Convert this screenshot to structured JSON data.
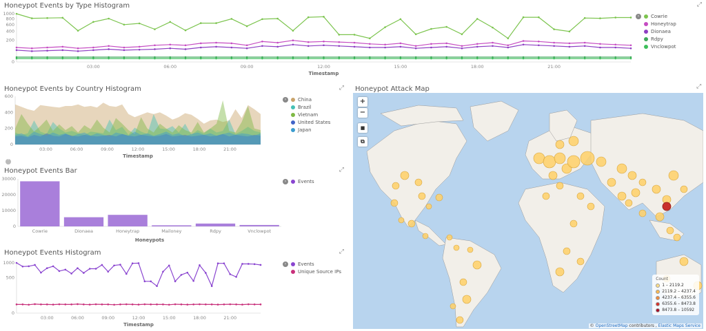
{
  "panels": {
    "type_hist": {
      "title": "Honeypot Events by Type Histogram"
    },
    "country_hist": {
      "title": "Honeypot Events by Country Histogram"
    },
    "bar": {
      "title": "Honeypot Events Bar"
    },
    "events_hist": {
      "title": "Honeypot Events Histogram"
    },
    "map": {
      "title": "Honeypot Attack Map"
    }
  },
  "map": {
    "zoom_in": "+",
    "zoom_out": "−",
    "legend_title": "Count",
    "legend": [
      {
        "label": "1 – 2119.2",
        "color": "#ffe08a"
      },
      {
        "label": "2119.2 – 4237.4",
        "color": "#fcb94f"
      },
      {
        "label": "4237.4 – 6355.6",
        "color": "#f08a3c"
      },
      {
        "label": "6355.6 – 8473.8",
        "color": "#d7302a"
      },
      {
        "label": "8473.8 – 10592",
        "color": "#a50d26"
      }
    ],
    "attribution_prefix": "© ",
    "attribution_osm": "OpenStreetMap",
    "attribution_mid": " contributors , ",
    "attribution_ems": "Elastic Maps Service"
  },
  "colors": {
    "Cowrie": "#7cc44e",
    "Honeytrap": "#c54bc2",
    "Dionaea": "#8e3ec3",
    "Rdpy": "#3fa85a",
    "Vnclowpot": "#3dbf5b",
    "China": "#c9a36b",
    "Brazil": "#45c0b5",
    "Vietnam": "#7fb944",
    "United States": "#4164c8",
    "Japan": "#3a9ccf",
    "Events": "#8a45d0",
    "Unique Source IPs": "#c8307b",
    "bar": "#a97fdb"
  },
  "chart_data": [
    {
      "type": "line",
      "title": "Honeypot Events by Type Histogram",
      "xlabel": "Timestamp",
      "x_ticks": [
        "03:00",
        "06:00",
        "09:00",
        "12:00",
        "15:00",
        "18:00",
        "21:00"
      ],
      "y_ticks": [
        "0",
        "200",
        "400",
        "600",
        "800",
        "1000"
      ],
      "series": [
        {
          "name": "Cowrie",
          "values": [
            1000,
            820,
            830,
            840,
            420,
            690,
            810,
            600,
            640,
            460,
            690,
            430,
            650,
            650,
            800,
            550,
            790,
            810,
            420,
            860,
            880,
            320,
            320,
            240,
            520,
            790,
            330,
            470,
            530,
            330,
            800,
            510,
            240,
            860,
            860,
            460,
            400,
            830,
            820,
            850,
            850
          ]
        },
        {
          "name": "Honeytrap",
          "values": [
            90,
            80,
            90,
            100,
            80,
            90,
            110,
            90,
            100,
            120,
            130,
            120,
            150,
            160,
            150,
            120,
            180,
            160,
            200,
            170,
            180,
            170,
            160,
            140,
            130,
            150,
            110,
            140,
            150,
            110,
            140,
            160,
            120,
            190,
            180,
            160,
            150,
            160,
            140,
            130,
            120
          ]
        },
        {
          "name": "Dionaea",
          "values": [
            60,
            50,
            55,
            60,
            50,
            60,
            70,
            60,
            65,
            70,
            80,
            70,
            90,
            100,
            90,
            80,
            110,
            100,
            130,
            110,
            120,
            110,
            100,
            90,
            90,
            100,
            80,
            90,
            100,
            80,
            100,
            110,
            90,
            130,
            120,
            110,
            100,
            110,
            90,
            90,
            80
          ]
        },
        {
          "name": "Rdpy",
          "values": [
            10,
            10,
            10,
            10,
            10,
            10,
            10,
            10,
            10,
            10,
            10,
            10,
            10,
            10,
            10,
            10,
            10,
            10,
            10,
            10,
            10,
            10,
            10,
            10,
            10,
            10,
            10,
            10,
            10,
            10,
            10,
            10,
            10,
            10,
            10,
            10,
            10,
            10,
            10,
            10,
            10
          ]
        },
        {
          "name": "Vnclowpot",
          "values": [
            5,
            5,
            5,
            5,
            5,
            5,
            5,
            5,
            5,
            5,
            5,
            5,
            5,
            5,
            5,
            5,
            5,
            5,
            5,
            5,
            5,
            5,
            5,
            5,
            5,
            5,
            5,
            5,
            5,
            5,
            5,
            5,
            5,
            5,
            5,
            5,
            5,
            5,
            5,
            5,
            5
          ]
        }
      ]
    },
    {
      "type": "area",
      "title": "Honeypot Events by Country Histogram",
      "xlabel": "Timestamp",
      "x_ticks": [
        "03:00",
        "06:00",
        "09:00",
        "12:00",
        "15:00",
        "18:00",
        "21:00"
      ],
      "y_ticks": [
        "0",
        "200",
        "400",
        "600"
      ],
      "ylim": [
        0,
        600
      ],
      "series": [
        {
          "name": "China",
          "values": [
            500,
            470,
            440,
            420,
            490,
            480,
            470,
            460,
            480,
            480,
            500,
            470,
            480,
            460,
            520,
            480,
            470,
            500,
            380,
            340,
            370,
            400,
            380,
            400,
            360,
            310,
            340,
            390,
            370,
            320,
            260,
            300,
            310,
            280,
            300,
            440,
            330,
            490,
            440,
            380
          ]
        },
        {
          "name": "Brazil",
          "values": [
            150,
            120,
            140,
            300,
            160,
            130,
            280,
            200,
            150,
            170,
            140,
            120,
            160,
            150,
            140,
            310,
            180,
            220,
            120,
            210,
            160,
            130,
            380,
            200,
            190,
            230,
            150,
            260,
            120,
            180,
            140,
            200,
            150,
            170,
            310,
            130,
            170,
            220,
            170,
            150
          ]
        },
        {
          "name": "Vietnam",
          "values": [
            200,
            380,
            260,
            160,
            230,
            310,
            170,
            250,
            180,
            230,
            150,
            240,
            190,
            310,
            210,
            150,
            330,
            260,
            180,
            130,
            340,
            200,
            150,
            260,
            200,
            150,
            240,
            180,
            150,
            280,
            150,
            200,
            260,
            550,
            170,
            150,
            280,
            480,
            200,
            180
          ]
        },
        {
          "name": "United States",
          "values": [
            100,
            110,
            90,
            120,
            100,
            140,
            110,
            100,
            130,
            110,
            100,
            120,
            110,
            100,
            110,
            120,
            100,
            130,
            110,
            100,
            120,
            110,
            100,
            110,
            130,
            100,
            110,
            120,
            100,
            110,
            120,
            100,
            110,
            130,
            100,
            120,
            110,
            100,
            120,
            110
          ]
        },
        {
          "name": "Japan",
          "values": [
            120,
            140,
            100,
            160,
            130,
            110,
            150,
            120,
            140,
            100,
            130,
            150,
            110,
            140,
            120,
            100,
            150,
            130,
            110,
            160,
            120,
            140,
            110,
            130,
            160,
            120,
            140,
            100,
            130,
            150,
            120,
            140,
            110,
            130,
            150,
            120,
            140,
            130,
            110,
            140
          ]
        }
      ]
    },
    {
      "type": "bar",
      "title": "Honeypot Events Bar",
      "xlabel": "Honeypots",
      "categories": [
        "Cowrie",
        "Dionaea",
        "Honeytrap",
        "Mailoney",
        "Rdpy",
        "Vnclowpot"
      ],
      "series": [
        {
          "name": "Events",
          "values": [
            28500,
            5800,
            7300,
            700,
            1800,
            900
          ]
        }
      ],
      "y_ticks": [
        "0",
        "10000",
        "20000",
        "30000"
      ],
      "ylim": [
        0,
        30000
      ]
    },
    {
      "type": "line",
      "title": "Honeypot Events Histogram",
      "xlabel": "Timestamp",
      "x_ticks": [
        "03:00",
        "06:00",
        "09:00",
        "12:00",
        "15:00",
        "18:00",
        "21:00"
      ],
      "y_ticks": [
        "0",
        "500",
        "1000"
      ],
      "series": [
        {
          "name": "Events",
          "values": [
            1000,
            860,
            870,
            920,
            650,
            800,
            870,
            700,
            750,
            620,
            800,
            640,
            780,
            780,
            920,
            680,
            900,
            930,
            610,
            980,
            990,
            400,
            400,
            290,
            680,
            900,
            400,
            580,
            650,
            410,
            910,
            640,
            290,
            980,
            980,
            600,
            520,
            960,
            960,
            950,
            920
          ]
        },
        {
          "name": "Unique Source IPs",
          "values": [
            30,
            30,
            28,
            32,
            30,
            30,
            29,
            31,
            30,
            30,
            32,
            30,
            29,
            31,
            30,
            30,
            28,
            30,
            31,
            30,
            29,
            31,
            30,
            30,
            30,
            28,
            31,
            30,
            29,
            30,
            31,
            30,
            30,
            29,
            30,
            31,
            30,
            29,
            31,
            30,
            30
          ]
        }
      ]
    }
  ]
}
